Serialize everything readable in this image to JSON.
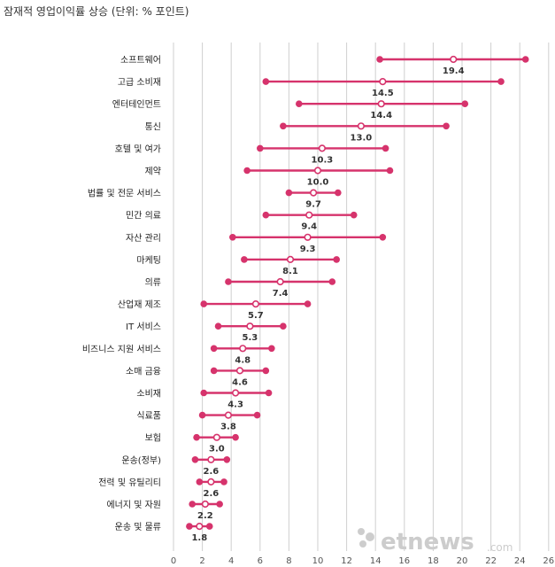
{
  "title": "잠재적 영업이익률 상승 (단위: % 포인트)",
  "chart_data": {
    "type": "dumbbell",
    "title": "잠재적 영업이익률 상승 (단위: % 포인트)",
    "xlim": [
      0,
      26
    ],
    "xticks": [
      "0",
      "2",
      "4",
      "6",
      "8",
      "10",
      "12",
      "14",
      "16",
      "18",
      "20",
      "22",
      "24",
      "26"
    ],
    "grid": true,
    "categories": [
      {
        "name": "소프트웨어",
        "low": 14.3,
        "high": 24.4,
        "mid": 19.4,
        "label": "19.4"
      },
      {
        "name": "고급 소비재",
        "low": 6.4,
        "high": 22.7,
        "mid": 14.5,
        "label": "14.5"
      },
      {
        "name": "엔터테인먼트",
        "low": 8.7,
        "high": 20.2,
        "mid": 14.4,
        "label": "14.4"
      },
      {
        "name": "통신",
        "low": 7.6,
        "high": 18.9,
        "mid": 13.0,
        "label": "13.0"
      },
      {
        "name": "호텔 및 여가",
        "low": 6.0,
        "high": 14.7,
        "mid": 10.3,
        "label": "10.3"
      },
      {
        "name": "제약",
        "low": 5.1,
        "high": 15.0,
        "mid": 10.0,
        "label": "10.0"
      },
      {
        "name": "법률 및 전문 서비스",
        "low": 8.0,
        "high": 11.4,
        "mid": 9.7,
        "label": "9.7"
      },
      {
        "name": "민간 의료",
        "low": 6.4,
        "high": 12.5,
        "mid": 9.4,
        "label": "9.4"
      },
      {
        "name": "자산 관리",
        "low": 4.1,
        "high": 14.5,
        "mid": 9.3,
        "label": "9.3"
      },
      {
        "name": "마케팅",
        "low": 4.9,
        "high": 11.3,
        "mid": 8.1,
        "label": "8.1"
      },
      {
        "name": "의류",
        "low": 3.8,
        "high": 11.0,
        "mid": 7.4,
        "label": "7.4"
      },
      {
        "name": "산업재 제조",
        "low": 2.1,
        "high": 9.3,
        "mid": 5.7,
        "label": "5.7"
      },
      {
        "name": "IT 서비스",
        "low": 3.1,
        "high": 7.6,
        "mid": 5.3,
        "label": "5.3"
      },
      {
        "name": "비즈니스 지원 서비스",
        "low": 2.8,
        "high": 6.8,
        "mid": 4.8,
        "label": "4.8"
      },
      {
        "name": "소매 금융",
        "low": 2.8,
        "high": 6.4,
        "mid": 4.6,
        "label": "4.6"
      },
      {
        "name": "소비재",
        "low": 2.1,
        "high": 6.6,
        "mid": 4.3,
        "label": "4.3"
      },
      {
        "name": "식료품",
        "low": 2.0,
        "high": 5.8,
        "mid": 3.8,
        "label": "3.8"
      },
      {
        "name": "보험",
        "low": 1.6,
        "high": 4.3,
        "mid": 3.0,
        "label": "3.0"
      },
      {
        "name": "운송(정부)",
        "low": 1.5,
        "high": 3.7,
        "mid": 2.6,
        "label": "2.6"
      },
      {
        "name": "전력 및 유틸리티",
        "low": 1.8,
        "high": 3.5,
        "mid": 2.6,
        "label": "2.6"
      },
      {
        "name": "에너지 및 자원",
        "low": 1.3,
        "high": 3.2,
        "mid": 2.2,
        "label": "2.2"
      },
      {
        "name": "운송 및 물류",
        "low": 1.1,
        "high": 2.5,
        "mid": 1.8,
        "label": "1.8"
      }
    ],
    "colors": {
      "accent": "#d6336c",
      "grid": "#cfcfcf",
      "axis": "#888888"
    }
  },
  "watermark": {
    "text": "etnews",
    "suffix": ".com",
    "color": "#c8c8c8"
  }
}
